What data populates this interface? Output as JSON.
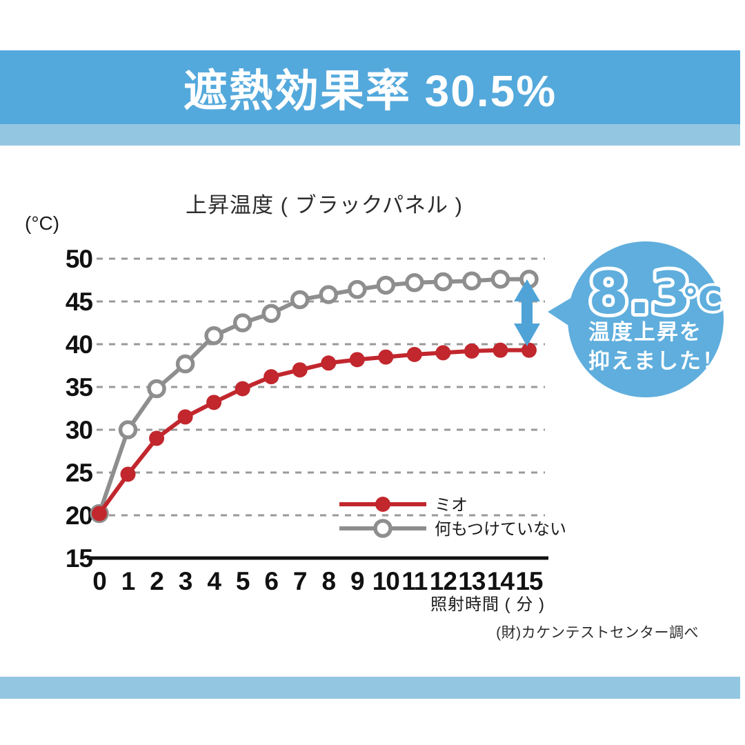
{
  "banner": {
    "title": "遮熱効果率 30.5%"
  },
  "chart_data": {
    "type": "line",
    "title": "上昇温度 ( ブラックパネル )",
    "y_axis_unit": "(°C)",
    "xlabel": "照射時間 ( 分 )",
    "x": [
      0,
      1,
      2,
      3,
      4,
      5,
      6,
      7,
      8,
      9,
      10,
      11,
      12,
      13,
      14,
      15
    ],
    "yticks": [
      15,
      20,
      25,
      30,
      35,
      40,
      45,
      50
    ],
    "ylim": [
      15,
      50
    ],
    "grid": "horizontal-dashed",
    "legend_position": "inside-lower-right",
    "series": [
      {
        "name": "ミオ",
        "color": "#C1272D",
        "marker": "filled-circle",
        "values": [
          20.2,
          24.8,
          29.0,
          31.5,
          33.2,
          34.8,
          36.2,
          37.0,
          37.8,
          38.2,
          38.5,
          38.8,
          39.0,
          39.2,
          39.3,
          39.3
        ]
      },
      {
        "name": "何もつけていない",
        "color": "#8E8E8E",
        "marker": "open-circle",
        "values": [
          20.2,
          30.0,
          34.8,
          37.7,
          41.0,
          42.5,
          43.6,
          45.2,
          45.8,
          46.4,
          46.9,
          47.2,
          47.3,
          47.4,
          47.6,
          47.6
        ]
      }
    ]
  },
  "annotation": {
    "delta_value": "8.3",
    "delta_unit": "℃",
    "line1": "温度上昇を",
    "line2": "抑えました！"
  },
  "footer": {
    "source": "(財)カケンテストセンター調べ"
  },
  "colors": {
    "banner_blue": "#54A9DC",
    "stripe_blue": "#93C7E1",
    "bubble_blue": "#5FAEDD",
    "arrow_blue": "#4FA3D7",
    "series_red": "#C1272D",
    "series_gray": "#8E8E8E",
    "grid_gray": "#999999",
    "axis_black": "#111111"
  }
}
